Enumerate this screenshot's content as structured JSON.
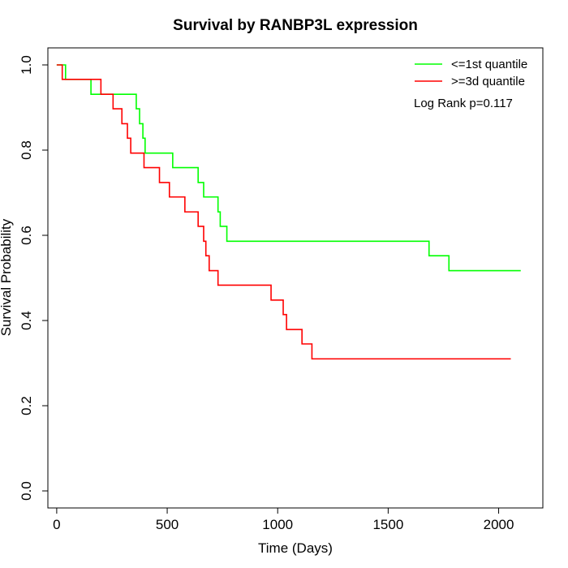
{
  "chart_data": {
    "type": "line",
    "title": "Survival by RANBP3L expression",
    "xlabel": "Time (Days)",
    "ylabel": "Survival Probability",
    "xlim": [
      -40,
      2200
    ],
    "ylim": [
      -0.04,
      1.04
    ],
    "xticks": [
      0,
      500,
      1000,
      1500,
      2000
    ],
    "xtick_labels": [
      "0",
      "500",
      "1000",
      "1500",
      "2000"
    ],
    "yticks": [
      0.0,
      0.2,
      0.4,
      0.6,
      0.8,
      1.0
    ],
    "ytick_labels": [
      "0.0",
      "0.2",
      "0.4",
      "0.6",
      "0.8",
      "1.0"
    ],
    "grid": false,
    "legend_position": "top-right",
    "annotation": "Log Rank p=0.117",
    "series": [
      {
        "name": "<=1st quantile",
        "color": "#00ff00",
        "steps": [
          [
            0,
            1.0
          ],
          [
            40,
            0.966
          ],
          [
            155,
            0.931
          ],
          [
            360,
            0.897
          ],
          [
            375,
            0.862
          ],
          [
            390,
            0.828
          ],
          [
            400,
            0.793
          ],
          [
            525,
            0.759
          ],
          [
            640,
            0.724
          ],
          [
            665,
            0.69
          ],
          [
            730,
            0.655
          ],
          [
            740,
            0.621
          ],
          [
            770,
            0.586
          ],
          [
            1685,
            0.552
          ],
          [
            1775,
            0.517
          ],
          [
            2100,
            0.517
          ]
        ]
      },
      {
        "name": ">=3d quantile",
        "color": "#ff0000",
        "steps": [
          [
            0,
            1.0
          ],
          [
            25,
            0.966
          ],
          [
            200,
            0.931
          ],
          [
            255,
            0.897
          ],
          [
            295,
            0.862
          ],
          [
            320,
            0.828
          ],
          [
            335,
            0.793
          ],
          [
            395,
            0.759
          ],
          [
            465,
            0.724
          ],
          [
            510,
            0.69
          ],
          [
            580,
            0.655
          ],
          [
            640,
            0.621
          ],
          [
            665,
            0.586
          ],
          [
            675,
            0.552
          ],
          [
            690,
            0.517
          ],
          [
            730,
            0.483
          ],
          [
            970,
            0.448
          ],
          [
            1025,
            0.414
          ],
          [
            1040,
            0.379
          ],
          [
            1110,
            0.345
          ],
          [
            1155,
            0.31
          ],
          [
            2055,
            0.31
          ]
        ]
      }
    ]
  }
}
